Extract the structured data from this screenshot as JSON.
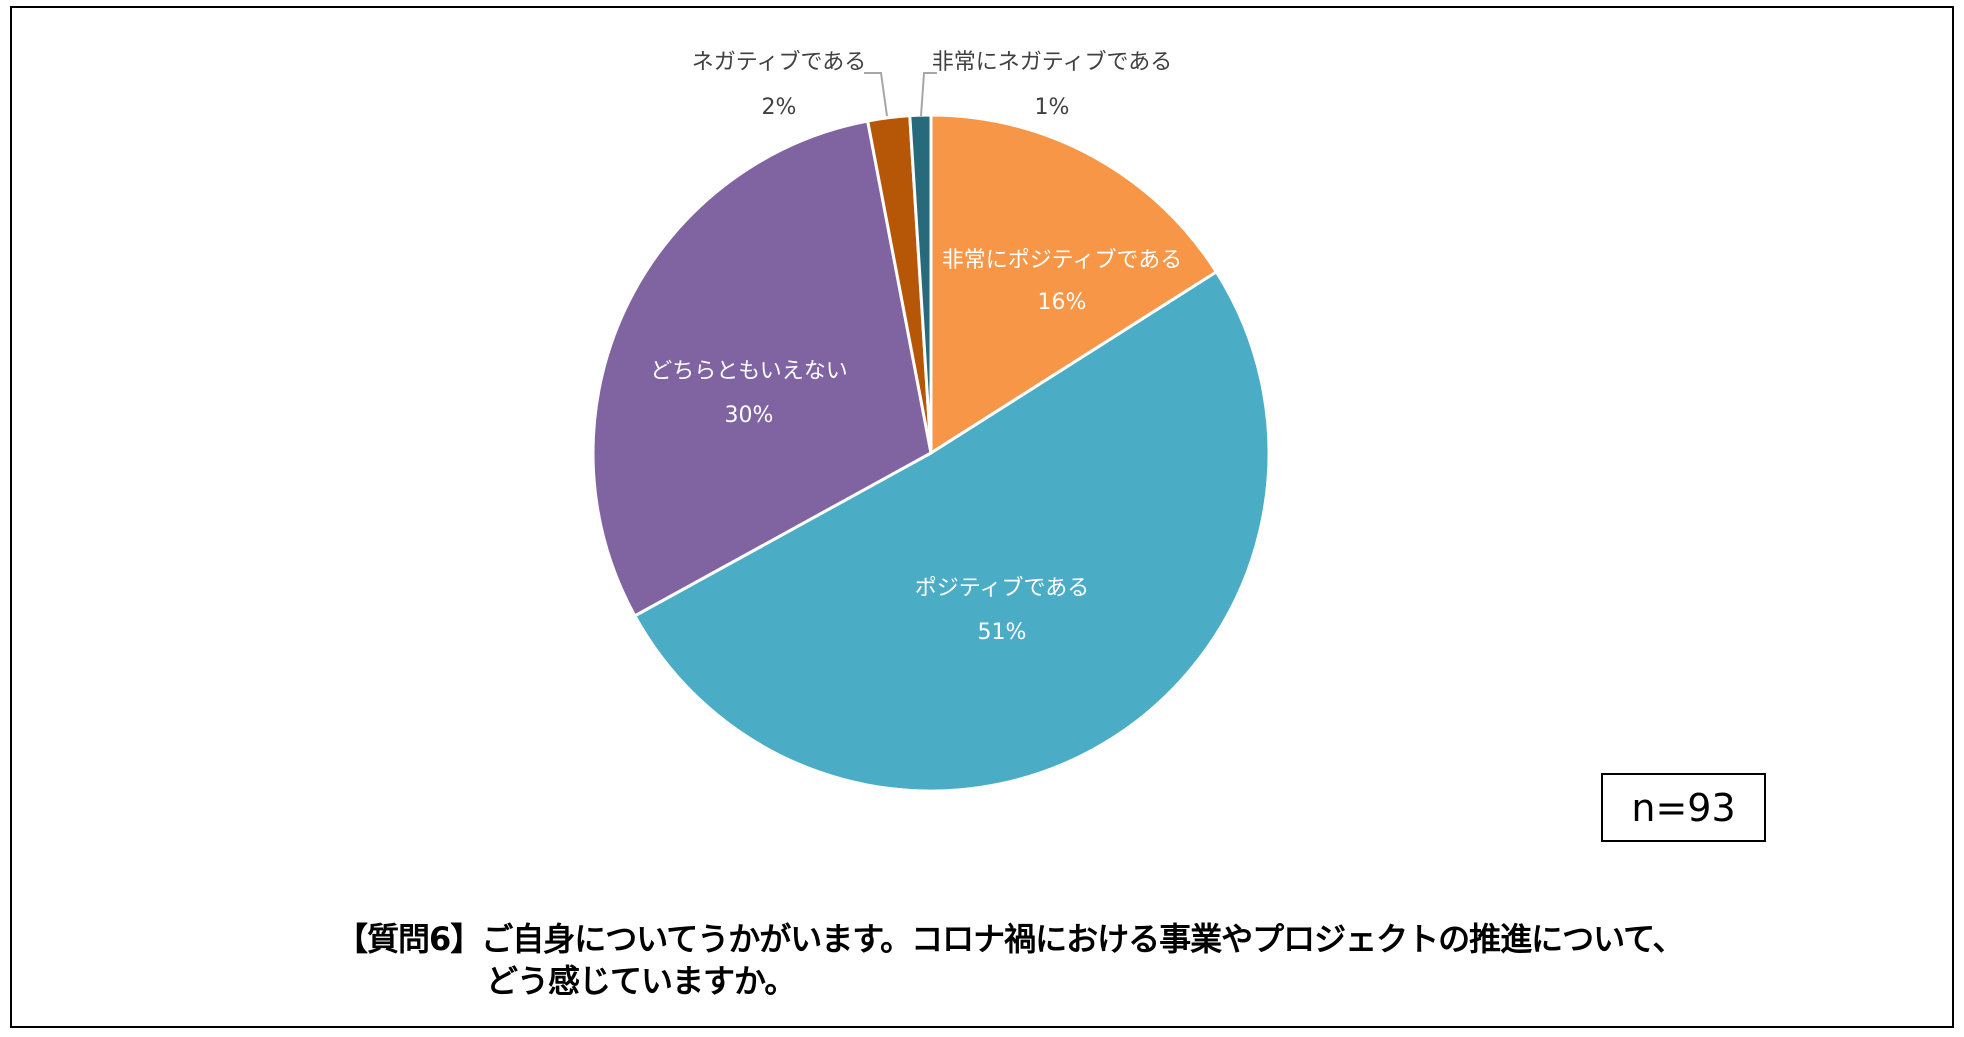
{
  "chart_data": {
    "type": "pie",
    "title": "【質問6】ご自身についてうかがいます。コロナ禍における事業やプロジェクトの推進について、どう感じていますか。",
    "title_lines": [
      "【質問6】ご自身についてうかがいます。コロナ禍における事業やプロジェクトの推進について、",
      "どう感じていますか。"
    ],
    "sample_size": "n=93",
    "start": "top",
    "direction": "clockwise",
    "slices": [
      {
        "label": "非常にポジティブである",
        "value": 16,
        "display": "16%",
        "color": "#F79646",
        "label_color": "#FFFFFF"
      },
      {
        "label": "ポジティブである",
        "value": 51,
        "display": "51%",
        "color": "#4BACC6",
        "label_color": "#FFFFFF"
      },
      {
        "label": "どちらともいえない",
        "value": 30,
        "display": "30%",
        "color": "#8064A2",
        "label_color": "#FFFFFF"
      },
      {
        "label": "ネガティブである",
        "value": 2,
        "display": "2%",
        "color": "#B65708",
        "label_color": "#404040"
      },
      {
        "label": "非常にネガティブである",
        "value": 1,
        "display": "1%",
        "color": "#276A7C",
        "label_color": "#404040"
      }
    ]
  }
}
